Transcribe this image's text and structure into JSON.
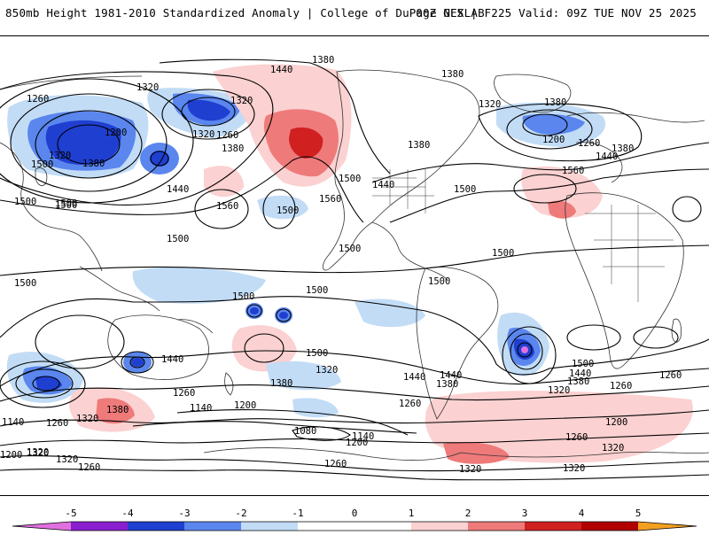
{
  "header": {
    "title_left": "850mb Height 1981-2010 Standardized Anomaly | College of DuPage NEXLAB",
    "title_right": "00Z GFS | F225 Valid: 09Z TUE NOV 25 2025"
  },
  "colors": {
    "anom_neg5": "#e070e0",
    "anom_neg4": "#8a1fd0",
    "anom_neg3": "#1f3fd0",
    "anom_neg2": "#5a86ee",
    "anom_neg1": "#c2dcf6",
    "anom_pos1": "#fbd1d1",
    "anom_pos2": "#ee7a7a",
    "anom_pos3": "#d02020",
    "anom_pos4": "#b00000",
    "anom_pos5": "#f3a020",
    "land_outline": "#333333",
    "contour": "#000000"
  },
  "map": {
    "contour_labels": [
      "1440",
      "1380",
      "1380",
      "1320",
      "1260",
      "1320",
      "1200",
      "1320",
      "1500",
      "1380",
      "1260",
      "1320",
      "1500",
      "1380",
      "1440",
      "1560",
      "1500",
      "1560",
      "1500",
      "1440",
      "1380",
      "1500",
      "1560",
      "1320",
      "1380",
      "1200",
      "1260",
      "1380",
      "1440",
      "1500",
      "1500",
      "1500",
      "1500",
      "1500",
      "1500",
      "1500",
      "1440",
      "1500",
      "1500",
      "1440",
      "1380",
      "1320",
      "1260",
      "1380",
      "1320",
      "1260",
      "1140",
      "1320",
      "1200",
      "1260",
      "1140",
      "1200",
      "1260",
      "1080",
      "1140",
      "1200",
      "1260",
      "1320",
      "1200",
      "1260",
      "1320",
      "1320",
      "1260",
      "1320",
      "1440",
      "1320",
      "1380",
      "1440",
      "1500",
      "1260",
      "1380",
      "1320",
      "1500"
    ]
  },
  "colorbar": {
    "ticks": [
      "-5",
      "-4",
      "-3",
      "-2",
      "-1",
      "0",
      "1",
      "2",
      "3",
      "4",
      "5"
    ]
  }
}
